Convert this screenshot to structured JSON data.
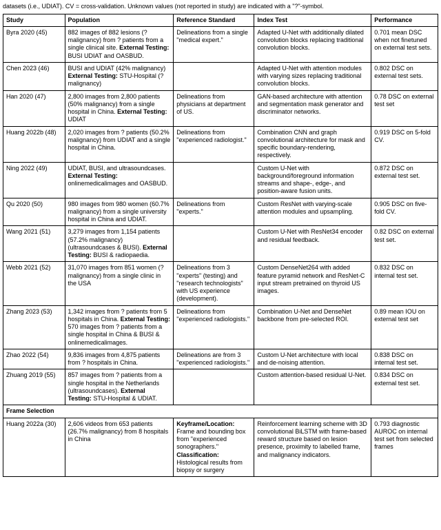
{
  "caption": "datasets (i.e., UDIAT). CV = cross-validation. Unknown values (not reported in study) are indicated with a \"?\"-symbol.",
  "headers": [
    "Study",
    "Population",
    "Reference Standard",
    "Index Test",
    "Performance"
  ],
  "rows": [
    {
      "study": "Byra 2020 (45)",
      "population": "882 images of 882 lesions (? malignancy) from ? patients from a single clinical site. <b>External Testing:</b> BUSI UDIAT and OASBUD.",
      "ref": "Delineations from a single \"medical expert.\"",
      "index": "Adapted U-Net with additionally dilated convolution blocks replacing traditional convolution blocks.",
      "perf": "0.701 mean DSC when not finetuned on external test sets."
    },
    {
      "study": "Chen 2023 (46)",
      "population": "BUSI and UDIAT (42% malignancy) <b>External Testing:</b> STU-Hospital (? malignancy)",
      "ref": "",
      "index": "Adapted U-Net with attention modules with varying sizes replacing traditional convolution blocks.",
      "perf": "0.802 DSC on external test sets."
    },
    {
      "study": "Han 2020 (47)",
      "population": "2,800 images from 2,800 patients (50% malignancy) from a single hospital in China. <b>External Testing:</b> UDIAT",
      "ref": "Delineations from physicians at department of US.",
      "index": "GAN-based architecture with attention and segmentation mask generator and discriminator networks.",
      "perf": "0.78 DSC on external test set"
    },
    {
      "study": "Huang 2022b (48)",
      "population": "2,020 images from ? patients (50.2% malignancy) from UDIAT and a single hospital in China.",
      "ref": "Delineations from \"experienced radiologist.\"",
      "index": "Combination CNN and graph convolutional architecture for mask and specific boundary-rendering, respectively.",
      "perf": "0.919 DSC on 5-fold CV."
    },
    {
      "study": "Ning 2022 (49)",
      "population": "UDIAT, BUSI, and ultrasoundcases. <b>External Testing:</b> onlinemedicalimages and OASBUD.",
      "ref": "",
      "index": "Custom U-Net with background/foreground information streams and shape-, edge-, and position-aware fusion units.",
      "perf": "0.872 DSC on external test set."
    },
    {
      "study": "Qu 2020 (50)",
      "population": "980 images from 980 women (60.7% malignancy) from a single university hospital in China and UDIAT.",
      "ref": "Delineations from \"experts.\"",
      "index": "Custom ResNet with varying-scale attention modules and upsampling.",
      "perf": "0.905 DSC on five-fold CV."
    },
    {
      "study": "Wang 2021 (51)",
      "population": "3,279 images from 1,154 patients (57.2% malignancy) (ultrasoundcases & BUSI). <b>External Testing:</b> BUSI & radiopaedia.",
      "ref": "",
      "index": "Custom U-Net with ResNet34 encoder and residual feedback.",
      "perf": "0.82 DSC on external test set."
    },
    {
      "study": "Webb 2021 (52)",
      "population": "31,070 images from 851 women (? malignancy) from a single clinic in the USA",
      "ref": "Delineations from 3 \"experts\" (testing) and \"research technologists\" with US experience (development).",
      "index": "Custom DenseNet264 with added feature pyramid network and ResNet-C input stream pretrained on thyroid US images.",
      "perf": "0.832 DSC on internal test set."
    },
    {
      "study": "Zhang 2023 (53)",
      "population": "1,342 images from ? patients from 5 hospitals in China. <b>External Testing:</b> 570 images from ? patients from a single hospital in China & BUSI & onlinemedicalimages.",
      "ref": "Delineations from \"experienced radiologists.\"",
      "index": "Combination U-Net and DenseNet backbone from pre-selected ROI.",
      "perf": "0.89 mean IOU on external test set"
    },
    {
      "study": "Zhao 2022 (54)",
      "population": "9,836 images from 4,875 patients from ? hospitals in China.",
      "ref": "Delineations are from 3 \"experienced radiologists.\"",
      "index": "Custom U-Net architecture with local and de-noising attention.",
      "perf": "0.838 DSC on internal test set."
    },
    {
      "study": "Zhuang 2019 (55)",
      "population": "857 images from ? patients from a single hospital in the Netherlands (ultrasoundcases). <b>External Testing:</b> STU-Hospital & UDIAT.",
      "ref": "",
      "index": "Custom attention-based residual U-Net.",
      "perf": "0.834 DSC on external test set."
    }
  ],
  "section": "Frame Selection",
  "frame_row": {
    "study": "Huang 2022a (30)",
    "population": "2,606 videos from 653 patients (26.7% malignancy) from 8 hospitals in China",
    "ref": "<b>Keyframe/Location:</b> Frame and bounding box from \"experienced sonographers.\" <b>Classification:</b> Histological results from biopsy or surgery",
    "index": "Reinforcement learning scheme with 3D convolutional BiLSTM with frame-based reward structure based on lesion presence, proximity to labelled frame, and malignancy indicators.",
    "perf": "0.793 diagnostic AUROC on internal test set from selected frames"
  }
}
